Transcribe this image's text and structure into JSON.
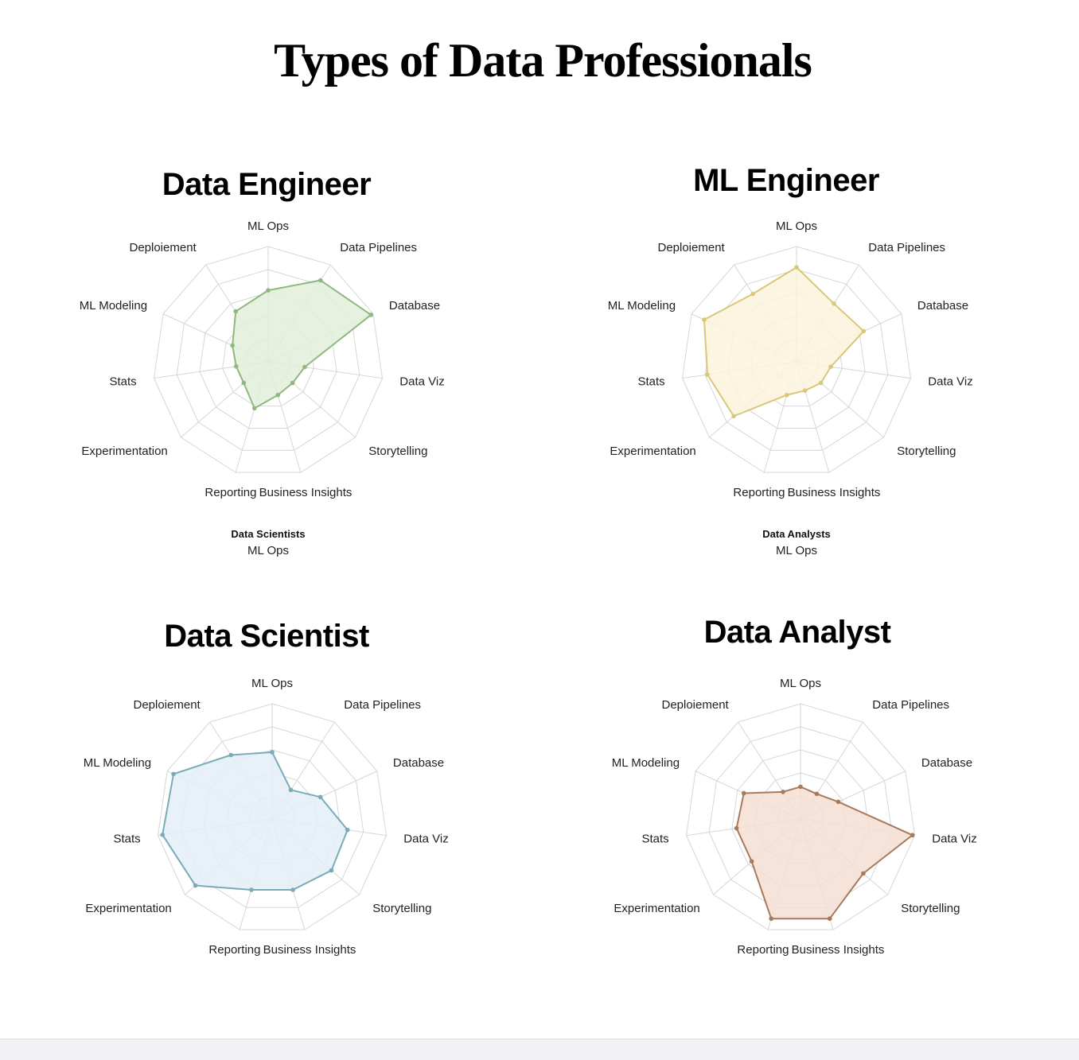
{
  "page_title": "Types of Data Professionals",
  "colors": {
    "grid": "#d6d6d6",
    "data_engineer": {
      "stroke": "#8fb87e",
      "fill": "#e3eedb"
    },
    "ml_engineer": {
      "stroke": "#d9c77a",
      "fill": "#fbf3dc"
    },
    "data_scientist": {
      "stroke": "#7aacb8",
      "fill": "#e4eef7"
    },
    "data_analyst": {
      "stroke": "#a87a5c",
      "fill": "#f4ded2"
    }
  },
  "captions": [
    {
      "bold": "Data Scientists",
      "normal": "ML Ops"
    },
    {
      "bold": "Data Analysts",
      "normal": "ML Ops"
    }
  ],
  "chart_data": [
    {
      "type": "radar",
      "title": "Data Engineer",
      "rmax": 5,
      "rings": 5,
      "axes": [
        "ML Ops",
        "Data Pipelines",
        "Database",
        "Data Viz",
        "Storytelling",
        "Business Insights",
        "Reporting",
        "Experimentation",
        "Stats",
        "ML Modeling",
        "Deploiement"
      ],
      "values": [
        3.1,
        4.2,
        4.9,
        1.6,
        1.4,
        1.5,
        2.1,
        1.4,
        1.4,
        1.7,
        2.6
      ]
    },
    {
      "type": "radar",
      "title": "ML Engineer",
      "rmax": 5,
      "rings": 5,
      "axes": [
        "ML Ops",
        "Data Pipelines",
        "Database",
        "Data Viz",
        "Storytelling",
        "Business Insights",
        "Reporting",
        "Experimentation",
        "Stats",
        "ML Modeling",
        "Deploiement"
      ],
      "values": [
        4.1,
        3.0,
        3.2,
        1.5,
        1.4,
        1.3,
        1.5,
        3.6,
        3.9,
        4.4,
        3.5
      ]
    },
    {
      "type": "radar",
      "title": "Data Scientist",
      "rmax": 5,
      "rings": 5,
      "axes": [
        "ML Ops",
        "Data Pipelines",
        "Database",
        "Data Viz",
        "Storytelling",
        "Business Insights",
        "Reporting",
        "Experimentation",
        "Stats",
        "ML Modeling",
        "Deploiement"
      ],
      "values": [
        2.9,
        1.5,
        2.3,
        3.3,
        3.4,
        3.2,
        3.2,
        4.4,
        4.8,
        4.7,
        3.3
      ]
    },
    {
      "type": "radar",
      "title": "Data Analyst",
      "rmax": 5,
      "rings": 5,
      "axes": [
        "ML Ops",
        "Data Pipelines",
        "Database",
        "Data Viz",
        "Storytelling",
        "Business Insights",
        "Reporting",
        "Experimentation",
        "Stats",
        "ML Modeling",
        "Deploiement"
      ],
      "values": [
        1.4,
        1.3,
        1.8,
        4.9,
        3.6,
        4.5,
        4.5,
        2.8,
        2.8,
        2.7,
        1.4
      ]
    }
  ]
}
